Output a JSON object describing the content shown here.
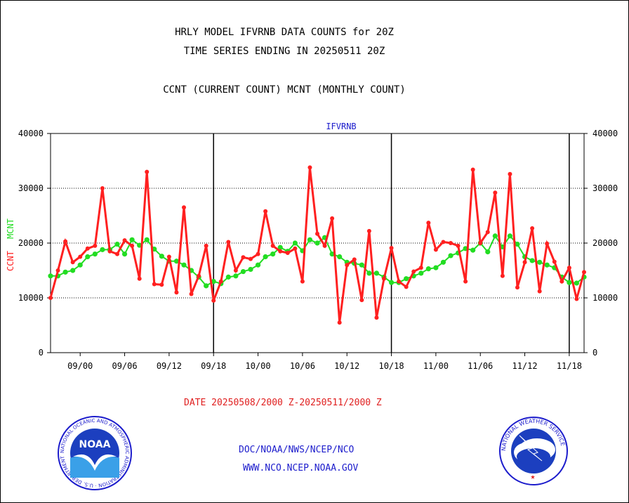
{
  "header": {
    "line1": "HRLY MODEL IFVRNB DATA COUNTS for 20Z",
    "line2": "TIME SERIES ENDING IN 20250511 20Z",
    "line3": "CCNT (CURRENT COUNT) MCNT (MONTHLY COUNT)"
  },
  "footer": {
    "date_range": "DATE 20250508/2000 Z-20250511/2000 Z",
    "org_line": "DOC/NOAA/NWS/NCEP/NCO",
    "url_line": "WWW.NCO.NCEP.NOAA.GOV",
    "noaa_logo_text": "NOAA",
    "noaa_ring_text": "NATIONAL OCEANIC AND ATMOSPHERIC ADMINISTRATION · U.S. DEPARTMENT OF COMMERCE",
    "nws_ring_text": "NATIONAL WEATHER SERVICE"
  },
  "colors": {
    "ccnt": "#ff2020",
    "mcnt": "#22dd22",
    "label_blue": "#1c1ccc",
    "date_red": "#e02020"
  },
  "chart_data": {
    "type": "line",
    "title": "IFVRNB",
    "ylabel_series": [
      "CCNT",
      "MCNT"
    ],
    "ylim": [
      0,
      40000
    ],
    "y_ticks": [
      0,
      10000,
      20000,
      30000,
      40000
    ],
    "x_tick_labels": [
      "09/00",
      "09/06",
      "09/12",
      "09/18",
      "10/00",
      "10/06",
      "10/12",
      "10/18",
      "11/00",
      "11/06",
      "11/12",
      "11/18"
    ],
    "x_tick_hours": [
      4,
      10,
      16,
      22,
      28,
      34,
      40,
      46,
      52,
      58,
      64,
      70
    ],
    "day_boundary_hours": [
      22,
      46,
      70
    ],
    "grid": true,
    "series": [
      {
        "name": "CCNT",
        "values": [
          10000,
          15000,
          20300,
          16500,
          17500,
          19000,
          19500,
          30000,
          18500,
          18000,
          20500,
          19500,
          13500,
          33000,
          12500,
          12400,
          17500,
          11000,
          26500,
          10700,
          14000,
          19500,
          9500,
          13000,
          20200,
          15000,
          17400,
          17100,
          18000,
          25800,
          19500,
          18500,
          18200,
          19000,
          13000,
          33800,
          21700,
          19500,
          24500,
          5500,
          16000,
          17000,
          9600,
          22200,
          6400,
          13500,
          19100,
          13000,
          12000,
          14800,
          15500,
          23700,
          18800,
          20200,
          20000,
          19500,
          13000,
          33400,
          20000,
          22000,
          29200,
          14000,
          32600,
          11900,
          16500,
          22700,
          11200,
          19900,
          16600,
          13000,
          15500,
          9800,
          14700
        ]
      },
      {
        "name": "MCNT",
        "values": [
          14000,
          14000,
          14700,
          15000,
          16000,
          17500,
          18000,
          18800,
          18800,
          19800,
          18000,
          20600,
          19600,
          20600,
          18900,
          17600,
          16700,
          16700,
          16000,
          15000,
          13800,
          12200,
          13000,
          12600,
          13800,
          14000,
          14800,
          15200,
          16000,
          17500,
          18000,
          19200,
          18500,
          20000,
          18600,
          20600,
          20000,
          21000,
          18000,
          17500,
          16500,
          16300,
          16000,
          14500,
          14500,
          13800,
          12800,
          12800,
          13500,
          14000,
          14500,
          15300,
          15500,
          16500,
          17700,
          18200,
          19000,
          18700,
          20000,
          18400,
          21300,
          19300,
          21300,
          19800,
          17500,
          16800,
          16500,
          16000,
          15500,
          13800,
          12800,
          12700,
          13800
        ]
      }
    ]
  }
}
